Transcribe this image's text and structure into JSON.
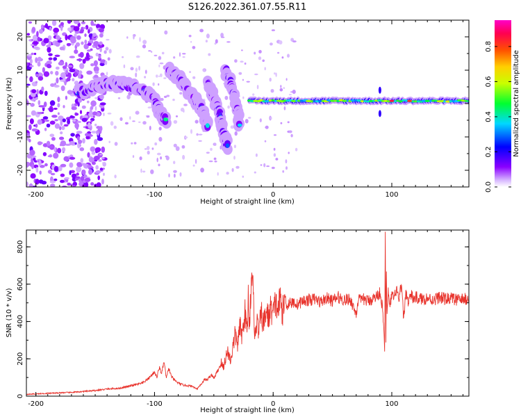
{
  "title": "S126.2022.361.07.55.R11",
  "chart_data": [
    {
      "type": "heatmap",
      "xlabel": "Height of straight line (km)",
      "ylabel": "Frequency (Hz)",
      "xlim": [
        -208,
        165
      ],
      "ylim": [
        -25,
        25
      ],
      "xticks": [
        -200,
        -100,
        0,
        100
      ],
      "xtick_labels": [
        "-200",
        "-100",
        "0",
        "100"
      ],
      "yticks": [
        -20,
        -10,
        0,
        10,
        20
      ],
      "ytick_labels": [
        "-20",
        "-10",
        "0",
        "10",
        "20"
      ],
      "colorbar": {
        "label": "Normalized spectral amplitude",
        "ticks": [
          0.0,
          0.2,
          0.4,
          0.6,
          0.8
        ],
        "tick_labels": [
          "0.0",
          "0.2",
          "0.4",
          "0.6",
          "0.8"
        ],
        "range": [
          0,
          0.95
        ],
        "colormap": "gist_rainbow_r",
        "colors": [
          "#ffffff",
          "#7f00ff",
          "#0000ff",
          "#00ffff",
          "#00ff00",
          "#ffff00",
          "#ff7f00",
          "#ff0000",
          "#ff00ff"
        ]
      },
      "features": [
        {
          "name": "noise cloud",
          "x_range": [
            -208,
            -150
          ],
          "y_range": [
            -25,
            25
          ],
          "amplitude": 0.12
        },
        {
          "name": "arc 1",
          "points": [
            [
              -165,
              3
            ],
            [
              -150,
              5
            ],
            [
              -140,
              6
            ],
            [
              -130,
              6
            ],
            [
              -120,
              5
            ],
            [
              -110,
              4
            ],
            [
              -100,
              1
            ],
            [
              -95,
              -3
            ],
            [
              -90,
              -5
            ]
          ],
          "amplitude": 0.4
        },
        {
          "name": "arc 2",
          "points": [
            [
              -88,
              10
            ],
            [
              -80,
              8
            ],
            [
              -72,
              4
            ],
            [
              -65,
              1
            ],
            [
              -58,
              -3
            ],
            [
              -55,
              -7
            ]
          ],
          "amplitude": 0.35
        },
        {
          "name": "arc 3",
          "points": [
            [
              -55,
              6
            ],
            [
              -50,
              2
            ],
            [
              -45,
              -3
            ],
            [
              -42,
              -9
            ],
            [
              -38,
              -13
            ]
          ],
          "amplitude": 0.3
        },
        {
          "name": "arc 4",
          "points": [
            [
              -40,
              10
            ],
            [
              -35,
              5
            ],
            [
              -30,
              -2
            ],
            [
              -28,
              -7
            ]
          ],
          "amplitude": 0.3
        },
        {
          "name": "steady line",
          "x_range": [
            -20,
            165
          ],
          "y_center": 0.8,
          "amplitude": 0.55
        }
      ]
    },
    {
      "type": "line",
      "xlabel": "Height of straight line (km)",
      "ylabel": "SNR (10 * v/v)",
      "xlim": [
        -208,
        165
      ],
      "ylim": [
        0,
        890
      ],
      "xticks": [
        -200,
        -100,
        0,
        100
      ],
      "xtick_labels": [
        "-200",
        "-100",
        "0",
        "100"
      ],
      "yticks": [
        0,
        200,
        400,
        600,
        800
      ],
      "ytick_labels": [
        "0",
        "200",
        "400",
        "600",
        "800"
      ],
      "grid": false,
      "series": [
        {
          "color": "#e8332c",
          "x": [
            -208,
            -200,
            -190,
            -180,
            -170,
            -160,
            -150,
            -140,
            -130,
            -120,
            -110,
            -105,
            -100,
            -98,
            -96,
            -94,
            -92,
            -90,
            -88,
            -86,
            -84,
            -82,
            -80,
            -78,
            -76,
            -74,
            -72,
            -70,
            -68,
            -66,
            -64,
            -62,
            -60,
            -58,
            -56,
            -54,
            -52,
            -50,
            -48,
            -46,
            -44,
            -42,
            -40,
            -38,
            -36,
            -34,
            -32,
            -30,
            -28,
            -26,
            -24,
            -22,
            -21,
            -20,
            -18,
            -16,
            -15,
            -14,
            -12,
            -10,
            -8,
            -6,
            -4,
            -2,
            0,
            2,
            4,
            6,
            8,
            10,
            12,
            14,
            16,
            18,
            20,
            25,
            30,
            35,
            40,
            45,
            50,
            55,
            60,
            65,
            70,
            72,
            74,
            76,
            80,
            85,
            88,
            90,
            92,
            93,
            94,
            94.5,
            95,
            95.5,
            96,
            97,
            98,
            100,
            102,
            104,
            106,
            108,
            110,
            112,
            114,
            116,
            118,
            120,
            125,
            130,
            135,
            140,
            145,
            150,
            155,
            160,
            165
          ],
          "y": [
            10,
            12,
            15,
            18,
            20,
            25,
            30,
            38,
            42,
            55,
            70,
            95,
            130,
            100,
            155,
            120,
            185,
            95,
            150,
            110,
            90,
            80,
            70,
            65,
            60,
            58,
            56,
            55,
            52,
            45,
            40,
            55,
            70,
            90,
            85,
            100,
            115,
            95,
            120,
            145,
            180,
            150,
            210,
            240,
            190,
            260,
            330,
            280,
            370,
            320,
            460,
            340,
            530,
            380,
            700,
            420,
            300,
            400,
            350,
            440,
            380,
            460,
            420,
            470,
            440,
            500,
            460,
            520,
            450,
            530,
            480,
            510,
            495,
            505,
            490,
            510,
            515,
            520,
            505,
            525,
            510,
            530,
            515,
            520,
            440,
            530,
            505,
            520,
            510,
            525,
            540,
            560,
            480,
            380,
            250,
            890,
            300,
            700,
            420,
            560,
            470,
            540,
            520,
            580,
            500,
            600,
            420,
            560,
            500,
            545,
            520,
            530,
            520,
            525,
            515,
            530,
            520,
            525,
            515,
            520,
            520
          ]
        }
      ]
    }
  ]
}
